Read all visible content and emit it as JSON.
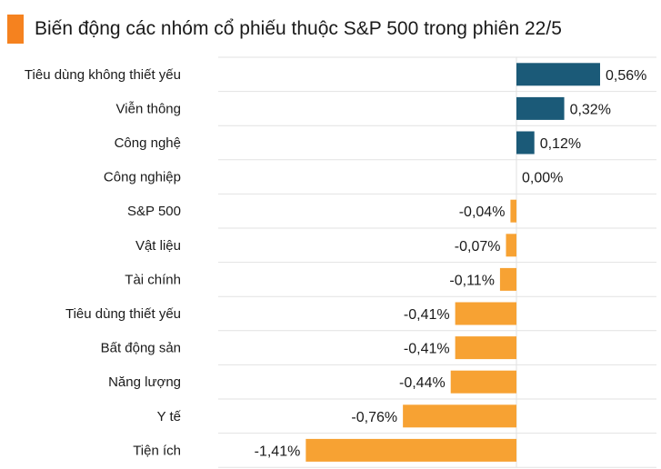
{
  "title": "Biến động các nhóm cổ phiếu thuộc S&P 500 trong phiên 22/5",
  "colors": {
    "accent": "#f5821f",
    "positive": "#1b5a78",
    "negative": "#f7a233",
    "grid": "#e2e2e2"
  },
  "chart_data": {
    "type": "bar",
    "orientation": "horizontal",
    "title": "Biến động các nhóm cổ phiếu thuộc S&P 500 trong phiên 22/5",
    "categories": [
      "Tiêu dùng không thiết yếu",
      "Viễn thông",
      "Công nghệ",
      "Công nghiệp",
      "S&P 500",
      "Vật liệu",
      "Tài chính",
      "Tiêu dùng thiết yếu",
      "Bất động sản",
      "Năng lượng",
      "Y tế",
      "Tiện ích"
    ],
    "values": [
      0.56,
      0.32,
      0.12,
      0.0,
      -0.04,
      -0.07,
      -0.11,
      -0.41,
      -0.41,
      -0.44,
      -0.76,
      -1.41
    ],
    "value_labels": [
      "0,56%",
      "0,32%",
      "0,12%",
      "0,00%",
      "-0,04%",
      "-0,07%",
      "-0,11%",
      "-0,41%",
      "-0,41%",
      "-0,44%",
      "-0,76%",
      "-1,41%"
    ],
    "unit": "%",
    "xlim": [
      -1.75,
      0.9
    ],
    "grid": true,
    "legend": "none"
  }
}
